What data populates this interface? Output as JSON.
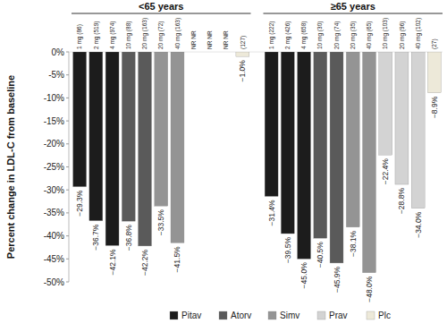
{
  "chart_data": {
    "type": "bar",
    "y_label": "Percent change in LDL-C from baseline",
    "groups": [
      {
        "label": "<65 years",
        "size": 11
      },
      {
        "label": "≥65 years",
        "size": 11
      }
    ],
    "categories": [
      "1 mg (86)",
      "2 mg (519)",
      "4 mg (974)",
      "10 mg (88)",
      "20 mg (163)",
      "20 mg (72)",
      "40 mg (163)",
      "NR NR",
      "NR NR",
      "NR NR",
      "(127)",
      "1 mg (222)",
      "2 mg (426)",
      "4 mg (658)",
      "10 mg (30)",
      "20 mg (74)",
      "20 mg (35)",
      "40 mg (65)",
      "10 mg (103)",
      "20 mg (96)",
      "40 mg (102)",
      "(27)"
    ],
    "series": [
      {
        "name": "Pitav",
        "color": "#1c1c1c",
        "values": [
          -29.3,
          -36.7,
          -42.1,
          null,
          null,
          null,
          null,
          null,
          null,
          null,
          null,
          -31.4,
          -39.5,
          -45.0,
          null,
          null,
          null,
          null,
          null,
          null,
          null,
          null
        ],
        "value_labels": [
          "−29.3%",
          "−36.7%",
          "−42.1%",
          null,
          null,
          null,
          null,
          null,
          null,
          null,
          null,
          "−31.4%",
          "−39.5%",
          "−45.0%",
          null,
          null,
          null,
          null,
          null,
          null,
          null,
          null
        ]
      },
      {
        "name": "Atorv",
        "color": "#5a5a5a",
        "values": [
          null,
          null,
          null,
          -36.8,
          -42.2,
          null,
          null,
          null,
          null,
          null,
          null,
          null,
          null,
          null,
          -40.5,
          -45.9,
          null,
          null,
          null,
          null,
          null,
          null
        ],
        "value_labels": [
          null,
          null,
          null,
          "−36.8%",
          "−42.2%",
          null,
          null,
          null,
          null,
          null,
          null,
          null,
          null,
          null,
          "−40.5%",
          "−45.9%",
          null,
          null,
          null,
          null,
          null,
          null
        ]
      },
      {
        "name": "Simv",
        "color": "#949494",
        "values": [
          null,
          null,
          null,
          null,
          null,
          -33.5,
          -41.5,
          null,
          null,
          null,
          null,
          null,
          null,
          null,
          null,
          null,
          -38.1,
          -48.0,
          null,
          null,
          null,
          null
        ],
        "value_labels": [
          null,
          null,
          null,
          null,
          null,
          "−33.5%",
          "−41.5%",
          null,
          null,
          null,
          null,
          null,
          null,
          null,
          null,
          null,
          "−38.1%",
          "−48.0%",
          null,
          null,
          null,
          null
        ]
      },
      {
        "name": "Prav",
        "color": "#d3d3d3",
        "values": [
          null,
          null,
          null,
          null,
          null,
          null,
          null,
          null,
          null,
          null,
          null,
          null,
          null,
          null,
          null,
          null,
          null,
          null,
          -22.4,
          -28.8,
          -34.0,
          null
        ],
        "value_labels": [
          null,
          null,
          null,
          null,
          null,
          null,
          null,
          null,
          null,
          null,
          null,
          null,
          null,
          null,
          null,
          null,
          null,
          null,
          "−22.4%",
          "−28.8%",
          "−34.0%",
          null
        ]
      },
      {
        "name": "Plc",
        "color": "#ede9d9",
        "values": [
          null,
          null,
          null,
          null,
          null,
          null,
          null,
          null,
          null,
          null,
          -1.0,
          null,
          null,
          null,
          null,
          null,
          null,
          null,
          null,
          null,
          null,
          -8.9
        ],
        "value_labels": [
          null,
          null,
          null,
          null,
          null,
          null,
          null,
          null,
          null,
          null,
          "−1.0%",
          null,
          null,
          null,
          null,
          null,
          null,
          null,
          null,
          null,
          null,
          "−8.9%"
        ]
      }
    ],
    "ylim": [
      -50,
      0
    ],
    "yticks": [
      {
        "value": 0,
        "label": "0%"
      },
      {
        "value": -5,
        "label": "-5%"
      },
      {
        "value": -10,
        "label": "-10%"
      },
      {
        "value": -15,
        "label": "-15%"
      },
      {
        "value": -20,
        "label": "-20%"
      },
      {
        "value": -25,
        "label": "-25%"
      },
      {
        "value": -30,
        "label": "-30%"
      },
      {
        "value": -35,
        "label": "-35%"
      },
      {
        "value": -40,
        "label": "-40%"
      },
      {
        "value": -45,
        "label": "-45%"
      },
      {
        "value": -50,
        "label": "-50%"
      }
    ],
    "grid": false,
    "legend": "bottom",
    "data_labels": true
  }
}
